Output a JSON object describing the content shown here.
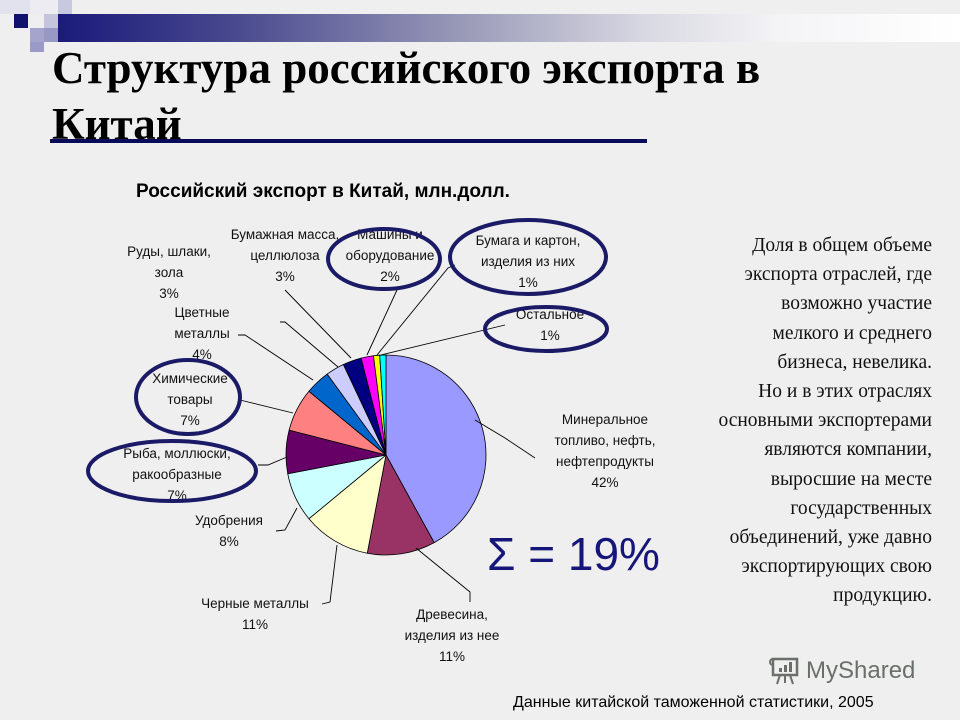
{
  "slide": {
    "title_line1": "Структура российского экспорта в",
    "title_line2": "Китай",
    "side_text_lines": [
      "Доля в общем объеме",
      "экспорта отраслей, где",
      "возможно участие",
      "мелкого и среднего",
      "бизнеса, невелика.",
      "Но и в этих отраслях",
      "основными экспортерами",
      "являются компании,",
      "выросшие на месте",
      "государственных",
      "объединений, уже давно",
      "экспортирующих свою",
      "продукцию."
    ],
    "sigma_text": "Σ = 19%",
    "source": "Данные китайской таможенной статистики, 2005",
    "watermark": "MyShared",
    "colors": {
      "accent": "#15157a",
      "title_rule": "#0a0a5a",
      "highlight_ellipse": "#1a1a66"
    }
  },
  "chart_data": {
    "type": "pie",
    "title": "Российский экспорт в Китай, млн.долл.",
    "categories": [
      "Минеральное топливо, нефть, нефтепродукты",
      "Древесина, изделия из нее",
      "Черные металлы",
      "Удобрения",
      "Рыба, моллюски, ракообразные",
      "Химические товары",
      "Цветные металлы",
      "Руды, шлаки, зола",
      "Бумажная масса, целлюлоза",
      "Машины и оборудование",
      "Бумага и картон, изделия из них",
      "Остальное"
    ],
    "values": [
      42,
      11,
      11,
      8,
      7,
      7,
      4,
      3,
      3,
      2,
      1,
      1
    ],
    "unit": "%",
    "colors": [
      "#9999FF",
      "#993366",
      "#FFFFCC",
      "#CCFFFF",
      "#660066",
      "#FF8080",
      "#0066CC",
      "#CCCCFF",
      "#000080",
      "#FF00FF",
      "#FFFF00",
      "#00FFFF"
    ],
    "highlighted": [
      "Рыба, моллюски, ракообразные",
      "Химические товары",
      "Машины и оборудование",
      "Бумага и картон, изделия из них",
      "Остальное"
    ],
    "highlighted_sum": "19%",
    "labels": [
      {
        "lines": [
          "Минеральное",
          "топливо, нефть,",
          "нефтепродукты",
          "42%"
        ]
      },
      {
        "lines": [
          "Древесина,",
          "изделия из нее",
          "11%"
        ]
      },
      {
        "lines": [
          "Черные металлы",
          "11%"
        ]
      },
      {
        "lines": [
          "Удобрения",
          "8%"
        ]
      },
      {
        "lines": [
          "Рыба, моллюски,",
          "ракообразные",
          "7%"
        ]
      },
      {
        "lines": [
          "Химические",
          "товары",
          "7%"
        ]
      },
      {
        "lines": [
          "Цветные",
          "металлы",
          "4%"
        ]
      },
      {
        "lines": [
          "Руды, шлаки,",
          "зола",
          "3%"
        ]
      },
      {
        "lines": [
          "Бумажная масса,",
          "целлюлоза",
          "3%"
        ]
      },
      {
        "lines": [
          "Машины и",
          "оборудование",
          "2%"
        ]
      },
      {
        "lines": [
          "Бумага и картон,",
          "изделия из них",
          "1%"
        ]
      },
      {
        "lines": [
          "Остальное",
          "1%"
        ]
      }
    ]
  }
}
